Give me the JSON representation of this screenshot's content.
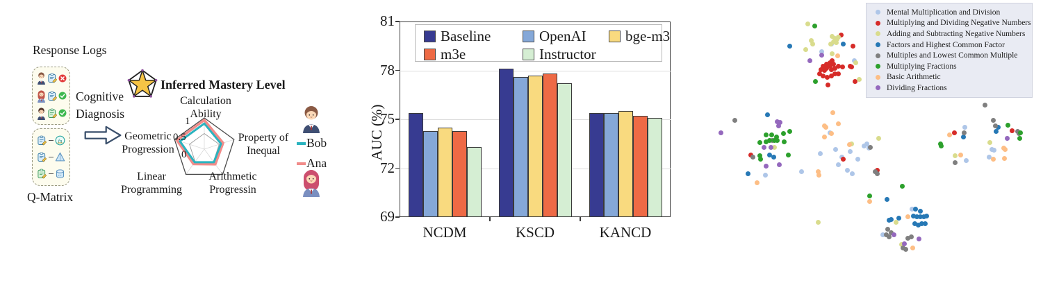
{
  "diagram": {
    "response_logs_label": "Response Logs",
    "q_matrix_label": "Q-Matrix",
    "cognitive_diagnosis_lines": [
      "Cognitive",
      "Diagnosis"
    ],
    "mastery_title": "Inferred Mastery Level",
    "response_rows": [
      {
        "avatar": "boy",
        "hair": "#8a5a44",
        "body": "#3f4f73",
        "clip": "blue",
        "result": "incorrect"
      },
      {
        "avatar": "girl",
        "hair": "#c0574a",
        "body": "#7a8fc0",
        "clip": "blue",
        "result": "correct"
      },
      {
        "avatar": "boy",
        "hair": "#57392e",
        "body": "#3f4f73",
        "clip": "green",
        "result": "correct"
      }
    ],
    "qmatrix_rows": [
      {
        "clip": "blue",
        "concept": "function",
        "glyph": "fn"
      },
      {
        "clip": "blue",
        "concept": "pyramid",
        "glyph": ""
      },
      {
        "clip": "green",
        "concept": "cylinder",
        "glyph": ""
      }
    ],
    "status_colors": {
      "incorrect": "#e23b3b",
      "correct": "#3fb950"
    }
  },
  "chart_data": [
    {
      "id": "mastery-radar",
      "type": "radar",
      "title": "Inferred Mastery Level",
      "axes": [
        "Calculation\nAbility",
        "Property of\nInequal",
        "Arithmetic\nProgressin",
        "Linear\nProgramming",
        "Geometric\nProgression"
      ],
      "radial_ticks": [
        "1",
        "0.5",
        "0"
      ],
      "rlim": [
        0,
        1
      ],
      "series": [
        {
          "name": "Bob",
          "color": "#2ab3bf",
          "values": [
            0.82,
            0.56,
            0.52,
            0.52,
            0.82
          ]
        },
        {
          "name": "Ana",
          "color": "#f18c8a",
          "values": [
            0.93,
            0.63,
            0.6,
            0.59,
            0.92
          ]
        }
      ]
    },
    {
      "id": "auc-bars",
      "type": "bar",
      "ylabel": "AUC (%)",
      "ylim": [
        69,
        81
      ],
      "yticks": [
        69,
        72,
        75,
        78,
        81
      ],
      "grid_yticks": [
        72,
        75,
        78
      ],
      "categories": [
        "NCDM",
        "KSCD",
        "KANCD"
      ],
      "series": [
        {
          "name": "Baseline",
          "color": "#373b91",
          "values": [
            75.4,
            78.1,
            75.4
          ]
        },
        {
          "name": "OpenAI",
          "color": "#85a8d8",
          "values": [
            74.3,
            77.6,
            75.4
          ]
        },
        {
          "name": "bge-m3",
          "color": "#f9da7f",
          "values": [
            74.5,
            77.7,
            75.5
          ]
        },
        {
          "name": "m3e",
          "color": "#ee6a45",
          "values": [
            74.3,
            77.8,
            75.2
          ]
        },
        {
          "name": "Instructor",
          "color": "#d5eed3",
          "values": [
            73.3,
            77.2,
            75.1
          ]
        }
      ],
      "legend_rows": [
        [
          "Baseline",
          "OpenAI",
          "bge-m3"
        ],
        [
          "m3e",
          "Instructor"
        ]
      ]
    },
    {
      "id": "concept-scatter",
      "type": "scatter",
      "legend_position": "upper right",
      "categories": [
        {
          "label": "Mental Multiplication and Division",
          "color": "#aec6e8"
        },
        {
          "label": "Multiplying and Dividing Negative Numbers",
          "color": "#d62b28"
        },
        {
          "label": "Adding and Subtracting Negative Numbers",
          "color": "#d9dc8d"
        },
        {
          "label": "Factors and Highest Common Factor",
          "color": "#2678b5"
        },
        {
          "label": "Multiples and Lowest Common Multiple",
          "color": "#7f7f7f"
        },
        {
          "label": "Multiplying Fractions",
          "color": "#2ca02c"
        },
        {
          "label": "Basic Arithmetic",
          "color": "#fdbe85"
        },
        {
          "label": "Dividing Fractions",
          "color": "#9468bd"
        }
      ],
      "points": [
        [
          35.1,
          15.0,
          0
        ],
        [
          41.5,
          20.7,
          0
        ],
        [
          32.3,
          17.6,
          0
        ],
        [
          34.7,
          45.4,
          0
        ],
        [
          36.3,
          51.3,
          0
        ],
        [
          31.9,
          52.5,
          0
        ],
        [
          40.3,
          52.0,
          0
        ],
        [
          37.9,
          53.9,
          0
        ],
        [
          37.1,
          56.3,
          0
        ],
        [
          42.5,
          54.4,
          0
        ],
        [
          44.4,
          50.1,
          0
        ],
        [
          45.2,
          49.4,
          0
        ],
        [
          45.8,
          50.6,
          0
        ],
        [
          39.5,
          58.2,
          0
        ],
        [
          40.9,
          59.6,
          0
        ],
        [
          26.4,
          58.9,
          0
        ],
        [
          16.1,
          59.9,
          0
        ],
        [
          58.1,
          71.7,
          0
        ],
        [
          49.8,
          80.5,
          0
        ],
        [
          73.2,
          43.5,
          0
        ],
        [
          73.6,
          54.9,
          0
        ],
        [
          80.8,
          51.1,
          0
        ],
        [
          81.5,
          51.5,
          0
        ],
        [
          80.0,
          53.7,
          0
        ],
        [
          37.7,
          11.9,
          1
        ],
        [
          41.1,
          15.9,
          1
        ],
        [
          32.7,
          22.8,
          1
        ],
        [
          33.7,
          21.9,
          1
        ],
        [
          34.7,
          21.4,
          1
        ],
        [
          35.3,
          20.7,
          1
        ],
        [
          35.7,
          21.9,
          1
        ],
        [
          34.7,
          22.6,
          1
        ],
        [
          33.7,
          23.3,
          1
        ],
        [
          33.1,
          24.0,
          1
        ],
        [
          32.1,
          23.8,
          1
        ],
        [
          35.1,
          23.8,
          1
        ],
        [
          36.1,
          23.3,
          1
        ],
        [
          37.1,
          22.8,
          1
        ],
        [
          38.1,
          23.0,
          1
        ],
        [
          40.3,
          22.6,
          1
        ],
        [
          40.7,
          23.0,
          1
        ],
        [
          31.7,
          25.4,
          1
        ],
        [
          32.7,
          25.9,
          1
        ],
        [
          33.9,
          26.4,
          1
        ],
        [
          35.1,
          25.9,
          1
        ],
        [
          36.1,
          25.4,
          1
        ],
        [
          37.1,
          25.2,
          1
        ],
        [
          34.1,
          29.0,
          1
        ],
        [
          41.7,
          27.8,
          1
        ],
        [
          38.3,
          54.4,
          1
        ],
        [
          48.2,
          58.2,
          1
        ],
        [
          12.1,
          53.2,
          1
        ],
        [
          70.2,
          45.4,
          1
        ],
        [
          86.7,
          44.7,
          1
        ],
        [
          28.2,
          8.3,
          2
        ],
        [
          29.2,
          14.0,
          2
        ],
        [
          29.6,
          15.0,
          2
        ],
        [
          27.6,
          16.9,
          2
        ],
        [
          35.3,
          12.4,
          2
        ],
        [
          36.1,
          13.1,
          2
        ],
        [
          36.7,
          13.5,
          2
        ],
        [
          35.7,
          14.3,
          2
        ],
        [
          36.5,
          14.7,
          2
        ],
        [
          34.9,
          15.0,
          2
        ],
        [
          37.1,
          12.8,
          2
        ],
        [
          35.3,
          18.3,
          2
        ],
        [
          41.9,
          21.6,
          2
        ],
        [
          42.9,
          27.3,
          2
        ],
        [
          31.2,
          76.2,
          2
        ],
        [
          48.6,
          47.5,
          2
        ],
        [
          40.7,
          49.2,
          2
        ],
        [
          18.8,
          50.4,
          2
        ],
        [
          53.4,
          76.2,
          2
        ],
        [
          55.0,
          83.8,
          2
        ],
        [
          70.4,
          53.4,
          2
        ],
        [
          80.2,
          48.7,
          2
        ],
        [
          23.2,
          15.9,
          3
        ],
        [
          38.3,
          15.0,
          3
        ],
        [
          16.7,
          39.4,
          3
        ],
        [
          17.3,
          53.2,
          3
        ],
        [
          18.5,
          53.7,
          3
        ],
        [
          11.3,
          59.6,
          3
        ],
        [
          50.8,
          68.2,
          3
        ],
        [
          51.4,
          75.3,
          3
        ],
        [
          59.1,
          71.5,
          3
        ],
        [
          60.5,
          72.4,
          3
        ],
        [
          58.5,
          74.1,
          3
        ],
        [
          59.5,
          74.3,
          3
        ],
        [
          60.5,
          74.3,
          3
        ],
        [
          61.5,
          74.3,
          3
        ],
        [
          62.3,
          73.9,
          3
        ],
        [
          58.9,
          76.7,
          3
        ],
        [
          59.9,
          77.0,
          3
        ],
        [
          60.9,
          76.7,
          3
        ],
        [
          61.9,
          76.7,
          3
        ],
        [
          52.0,
          75.1,
          3
        ],
        [
          54.2,
          74.8,
          3
        ],
        [
          72.8,
          46.8,
          3
        ],
        [
          82.7,
          43.7,
          3
        ],
        [
          82.1,
          44.9,
          3
        ],
        [
          7.5,
          41.3,
          4
        ],
        [
          18.1,
          48.2,
          4
        ],
        [
          12.5,
          53.7,
          4
        ],
        [
          46.2,
          50.4,
          4
        ],
        [
          48.2,
          59.6,
          4
        ],
        [
          47.6,
          58.7,
          4
        ],
        [
          78.8,
          36.1,
          4
        ],
        [
          81.2,
          41.1,
          4
        ],
        [
          81.9,
          43.0,
          4
        ],
        [
          88.1,
          44.9,
          4
        ],
        [
          88.5,
          45.8,
          4
        ],
        [
          73.0,
          45.4,
          4
        ],
        [
          70.4,
          55.6,
          4
        ],
        [
          51.0,
          78.6,
          4
        ],
        [
          52.0,
          79.6,
          4
        ],
        [
          50.6,
          80.5,
          4
        ],
        [
          51.4,
          81.2,
          4
        ],
        [
          57.9,
          81.0,
          4
        ],
        [
          56.9,
          81.7,
          4
        ],
        [
          55.4,
          84.8,
          4
        ],
        [
          56.2,
          85.3,
          4
        ],
        [
          30.2,
          8.8,
          5
        ],
        [
          30.4,
          28.0,
          5
        ],
        [
          16.3,
          46.3,
          5
        ],
        [
          17.9,
          46.1,
          5
        ],
        [
          19.4,
          46.8,
          5
        ],
        [
          21.4,
          45.8,
          5
        ],
        [
          23.2,
          45.1,
          5
        ],
        [
          14.5,
          48.7,
          5
        ],
        [
          16.3,
          48.5,
          5
        ],
        [
          17.3,
          48.2,
          5
        ],
        [
          18.7,
          48.0,
          5
        ],
        [
          19.6,
          48.2,
          5
        ],
        [
          21.6,
          48.5,
          5
        ],
        [
          22.8,
          53.2,
          5
        ],
        [
          14.5,
          53.4,
          5
        ],
        [
          14.7,
          54.4,
          5
        ],
        [
          55.2,
          63.7,
          5
        ],
        [
          46.0,
          67.2,
          5
        ],
        [
          66.1,
          49.2,
          5
        ],
        [
          66.3,
          50.1,
          5
        ],
        [
          85.5,
          42.8,
          5
        ],
        [
          88.7,
          47.3,
          5
        ],
        [
          88.9,
          45.4,
          5
        ],
        [
          36.9,
          19.2,
          6
        ],
        [
          35.5,
          38.7,
          6
        ],
        [
          33.1,
          43.0,
          6
        ],
        [
          33.5,
          43.5,
          6
        ],
        [
          37.1,
          42.5,
          6
        ],
        [
          33.1,
          46.8,
          6
        ],
        [
          35.1,
          45.8,
          6
        ],
        [
          31.3,
          58.9,
          6
        ],
        [
          31.5,
          59.9,
          6
        ],
        [
          40.1,
          49.6,
          6
        ],
        [
          13.7,
          62.7,
          6
        ],
        [
          46.0,
          69.1,
          6
        ],
        [
          56.9,
          74.3,
          6
        ],
        [
          58.3,
          84.8,
          6
        ],
        [
          68.8,
          46.3,
          6
        ],
        [
          72.0,
          53.0,
          6
        ],
        [
          84.3,
          50.6,
          6
        ],
        [
          84.7,
          51.1,
          6
        ],
        [
          81.2,
          54.6,
          6
        ],
        [
          84.5,
          54.2,
          6
        ],
        [
          28.8,
          20.9,
          7
        ],
        [
          32.3,
          19.0,
          7
        ],
        [
          3.4,
          45.6,
          7
        ],
        [
          19.6,
          41.6,
          7
        ],
        [
          20.4,
          42.0,
          7
        ],
        [
          20.0,
          43.0,
          7
        ],
        [
          15.7,
          50.4,
          7
        ],
        [
          17.7,
          50.4,
          7
        ],
        [
          16.3,
          56.8,
          7
        ],
        [
          20.2,
          56.3,
          7
        ],
        [
          52.8,
          80.3,
          7
        ],
        [
          55.8,
          83.4,
          7
        ],
        [
          60.1,
          81.9,
          7
        ],
        [
          85.3,
          47.5,
          7
        ]
      ]
    }
  ]
}
